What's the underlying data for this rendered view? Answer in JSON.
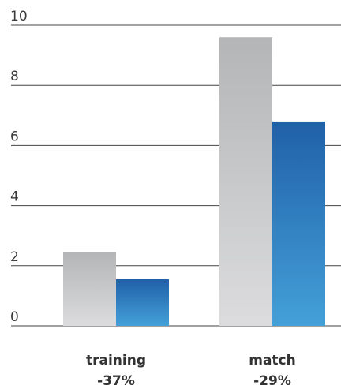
{
  "chart_data": {
    "type": "bar",
    "title": "",
    "xlabel": "",
    "ylabel": "",
    "ylim": [
      0,
      10
    ],
    "y_ticks": [
      0,
      2,
      4,
      6,
      8,
      10
    ],
    "grid": true,
    "categories": [
      "training",
      "match"
    ],
    "category_sublabels": [
      "-37%",
      "-29%"
    ],
    "series": [
      {
        "values": [
          2.45,
          9.6
        ],
        "color": "gray-gradient"
      },
      {
        "values": [
          1.55,
          6.8
        ],
        "color": "blue-gradient"
      }
    ]
  },
  "colors": {
    "gray_top": "#b3b5b7",
    "gray_bottom": "#dcdcde",
    "blue_top": "#2060a8",
    "blue_bottom": "#44a0d8",
    "gridline": "#444444",
    "text": "#333333"
  }
}
